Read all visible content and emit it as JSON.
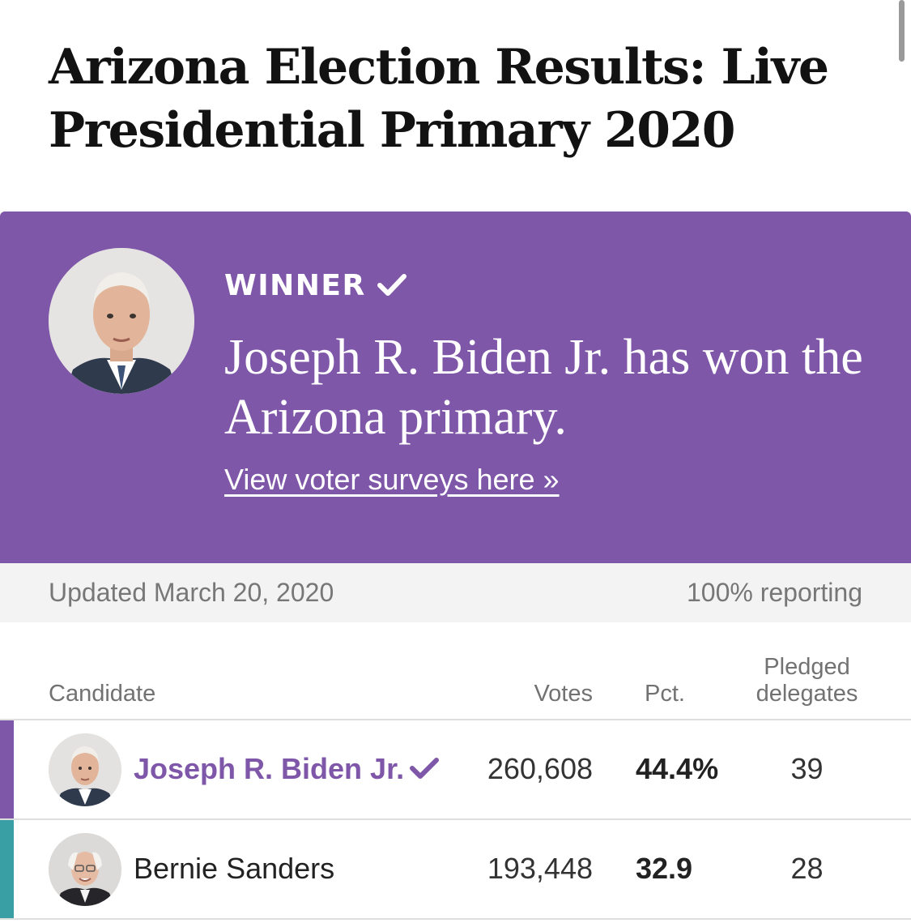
{
  "page": {
    "title": "Arizona Election Results: Live Presidential Primary 2020"
  },
  "banner": {
    "background_color": "#7f57a9",
    "winner_label": "WINNER",
    "headline": "Joseph R. Biden Jr. has won the Arizona primary.",
    "link_text": "View voter surveys here »",
    "check_icon": "checkmark-icon"
  },
  "status": {
    "updated": "Updated March 20, 2020",
    "reporting": "100% reporting"
  },
  "table": {
    "headers": {
      "candidate": "Candidate",
      "votes": "Votes",
      "pct": "Pct.",
      "delegates_line1": "Pledged",
      "delegates_line2": "delegates"
    },
    "rows": [
      {
        "name": "Joseph R. Biden Jr.",
        "votes": "260,608",
        "pct": "44.4%",
        "delegates": "39",
        "winner": true,
        "color": "#7f57a9"
      },
      {
        "name": "Bernie Sanders",
        "votes": "193,448",
        "pct": "32.9",
        "delegates": "28",
        "winner": false,
        "color": "#3a9ea5"
      }
    ]
  }
}
